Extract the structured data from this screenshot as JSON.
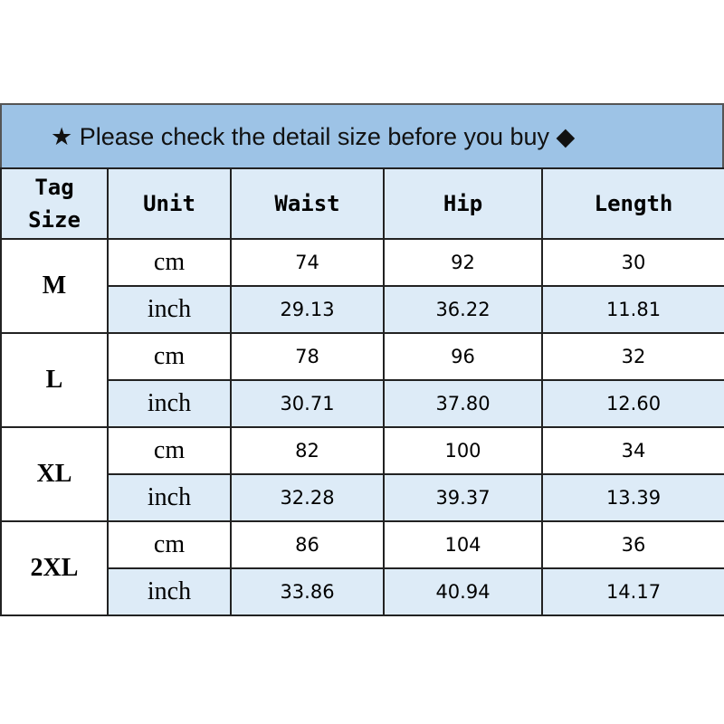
{
  "title": "★ Please check the detail size before you buy ◆",
  "colors": {
    "title_bg": "#9dc3e6",
    "header_bg": "#ddebf7",
    "alt_row_bg": "#ddebf7"
  },
  "headers": [
    "Tag Size",
    "Unit",
    "Waist",
    "Hip",
    "Length"
  ],
  "sizes": [
    {
      "tag": "M",
      "rows": [
        {
          "unit": "cm",
          "waist": "74",
          "hip": "92",
          "length": "30"
        },
        {
          "unit": "inch",
          "waist": "29.13",
          "hip": "36.22",
          "length": "11.81"
        }
      ]
    },
    {
      "tag": "L",
      "rows": [
        {
          "unit": "cm",
          "waist": "78",
          "hip": "96",
          "length": "32"
        },
        {
          "unit": "inch",
          "waist": "30.71",
          "hip": "37.80",
          "length": "12.60"
        }
      ]
    },
    {
      "tag": "XL",
      "rows": [
        {
          "unit": "cm",
          "waist": "82",
          "hip": "100",
          "length": "34"
        },
        {
          "unit": "inch",
          "waist": "32.28",
          "hip": "39.37",
          "length": "13.39"
        }
      ]
    },
    {
      "tag": "2XL",
      "rows": [
        {
          "unit": "cm",
          "waist": "86",
          "hip": "104",
          "length": "36"
        },
        {
          "unit": "inch",
          "waist": "33.86",
          "hip": "40.94",
          "length": "14.17"
        }
      ]
    }
  ]
}
